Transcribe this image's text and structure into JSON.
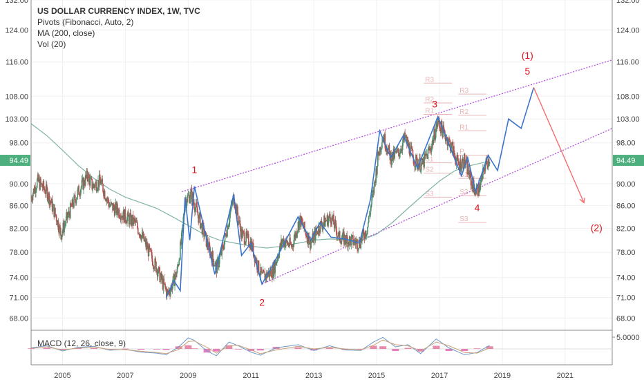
{
  "legend": {
    "title": "US DOLLAR CURRENCY INDEX, 1W, TVC",
    "line2": "Pivots (Fibonacci, Auto, 2)",
    "line3": "MA (200, close)",
    "line4": "Vol (20)"
  },
  "macd_label": "MACD (12, 26, close, 9)",
  "colors": {
    "candle_up": "#4e8d6b",
    "candle_down": "#b55050",
    "ma": "#7fb3a4",
    "wave": "#3b73c8",
    "channel": "#b24ce0",
    "label": "#e0121b",
    "pivot": "#e8b4b4",
    "price_tag": "#4caf7d"
  },
  "chart_data": {
    "type": "line",
    "title": "US DOLLAR CURRENCY INDEX, 1W, TVC",
    "y_scale": "log",
    "ylim": [
      66.3,
      132
    ],
    "xlim": [
      2004.0,
      2022.5
    ],
    "y_ticks": [
      "132.00",
      "124.00",
      "116.00",
      "108.00",
      "103.00",
      "98.00",
      "94.49",
      "90.00",
      "86.00",
      "82.00",
      "78.00",
      "74.00",
      "71.00",
      "68.00"
    ],
    "x_ticks": [
      "2005",
      "2007",
      "2009",
      "2011",
      "2013",
      "2015",
      "2017",
      "2019",
      "2021"
    ],
    "last_price": "94.49",
    "price_series": [
      [
        2004.0,
        87.5
      ],
      [
        2004.2,
        90.5
      ],
      [
        2004.5,
        88.5
      ],
      [
        2004.8,
        84.0
      ],
      [
        2004.95,
        81.0
      ],
      [
        2005.2,
        84.5
      ],
      [
        2005.5,
        88.5
      ],
      [
        2005.8,
        91.5
      ],
      [
        2005.95,
        89.5
      ],
      [
        2006.2,
        90.5
      ],
      [
        2006.5,
        86.0
      ],
      [
        2006.8,
        85.0
      ],
      [
        2007.0,
        84.0
      ],
      [
        2007.3,
        83.0
      ],
      [
        2007.5,
        81.0
      ],
      [
        2007.8,
        77.5
      ],
      [
        2008.0,
        75.5
      ],
      [
        2008.2,
        73.0
      ],
      [
        2008.35,
        71.5
      ],
      [
        2008.5,
        73.0
      ],
      [
        2008.65,
        75.0
      ],
      [
        2008.8,
        80.5
      ],
      [
        2008.9,
        87.0
      ],
      [
        2009.1,
        88.0
      ],
      [
        2009.3,
        84.5
      ],
      [
        2009.6,
        79.5
      ],
      [
        2009.9,
        75.5
      ],
      [
        2010.1,
        78.5
      ],
      [
        2010.45,
        87.5
      ],
      [
        2010.7,
        81.0
      ],
      [
        2011.0,
        79.5
      ],
      [
        2011.2,
        76.0
      ],
      [
        2011.35,
        74.0
      ],
      [
        2011.7,
        75.0
      ],
      [
        2012.0,
        80.0
      ],
      [
        2012.3,
        79.0
      ],
      [
        2012.55,
        83.5
      ],
      [
        2012.9,
        79.5
      ],
      [
        2013.2,
        82.5
      ],
      [
        2013.55,
        84.0
      ],
      [
        2013.8,
        80.5
      ],
      [
        2014.1,
        80.0
      ],
      [
        2014.45,
        79.5
      ],
      [
        2014.7,
        82.0
      ],
      [
        2014.9,
        88.5
      ],
      [
        2015.05,
        95.5
      ],
      [
        2015.2,
        99.5
      ],
      [
        2015.45,
        95.0
      ],
      [
        2015.7,
        96.0
      ],
      [
        2015.9,
        99.0
      ],
      [
        2016.2,
        94.5
      ],
      [
        2016.45,
        93.5
      ],
      [
        2016.75,
        97.5
      ],
      [
        2016.95,
        102.5
      ],
      [
        2017.1,
        100.5
      ],
      [
        2017.4,
        97.0
      ],
      [
        2017.6,
        93.5
      ],
      [
        2017.8,
        94.5
      ],
      [
        2018.0,
        90.5
      ],
      [
        2018.15,
        88.5
      ],
      [
        2018.3,
        89.5
      ],
      [
        2018.45,
        93.5
      ],
      [
        2018.6,
        95.0
      ]
    ],
    "ma_series": [
      [
        2004.0,
        102.0
      ],
      [
        2004.5,
        99.5
      ],
      [
        2005.0,
        96.5
      ],
      [
        2005.5,
        93.5
      ],
      [
        2006.0,
        91.0
      ],
      [
        2006.5,
        89.0
      ],
      [
        2007.0,
        87.5
      ],
      [
        2007.5,
        86.5
      ],
      [
        2008.0,
        85.5
      ],
      [
        2008.5,
        84.0
      ],
      [
        2009.0,
        82.5
      ],
      [
        2009.5,
        81.0
      ],
      [
        2010.0,
        80.0
      ],
      [
        2010.5,
        79.5
      ],
      [
        2011.0,
        79.0
      ],
      [
        2011.5,
        78.7
      ],
      [
        2012.0,
        79.0
      ],
      [
        2012.5,
        79.5
      ],
      [
        2013.0,
        80.0
      ],
      [
        2013.5,
        80.2
      ],
      [
        2014.0,
        80.1
      ],
      [
        2014.5,
        80.0
      ],
      [
        2015.0,
        81.0
      ],
      [
        2015.5,
        83.0
      ],
      [
        2016.0,
        85.5
      ],
      [
        2016.5,
        88.0
      ],
      [
        2017.0,
        90.5
      ],
      [
        2017.5,
        92.5
      ],
      [
        2018.0,
        93.5
      ],
      [
        2018.5,
        94.2
      ]
    ],
    "wave_path": [
      [
        2008.3,
        71.0
      ],
      [
        2008.55,
        73.5
      ],
      [
        2008.75,
        72.0
      ],
      [
        2008.9,
        87.5
      ],
      [
        2009.05,
        80.0
      ],
      [
        2009.2,
        89.5
      ],
      [
        2009.85,
        74.5
      ],
      [
        2010.45,
        88.0
      ],
      [
        2010.7,
        77.5
      ],
      [
        2011.0,
        79.5
      ],
      [
        2011.35,
        73.0
      ],
      [
        2011.7,
        76.0
      ],
      [
        2012.5,
        84.0
      ],
      [
        2012.9,
        80.0
      ],
      [
        2013.2,
        83.0
      ],
      [
        2013.55,
        80.5
      ],
      [
        2014.0,
        80.2
      ],
      [
        2014.45,
        79.5
      ],
      [
        2014.8,
        87.0
      ],
      [
        2015.1,
        100.5
      ],
      [
        2015.45,
        95.0
      ],
      [
        2015.85,
        99.5
      ],
      [
        2016.3,
        93.0
      ],
      [
        2016.95,
        103.5
      ],
      [
        2017.7,
        91.5
      ],
      [
        2017.9,
        95.0
      ],
      [
        2018.15,
        88.5
      ],
      [
        2018.55,
        95.5
      ],
      [
        2018.85,
        92.5
      ],
      [
        2019.2,
        103.0
      ],
      [
        2019.6,
        101.0
      ],
      [
        2020.0,
        110.0
      ]
    ],
    "projection_segment": [
      [
        2020.0,
        110.0
      ],
      [
        2021.6,
        86.5
      ]
    ],
    "channel_lines": [
      {
        "name": "upper",
        "points": [
          [
            2008.8,
            88.5
          ],
          [
            2022.5,
            116.5
          ]
        ]
      },
      {
        "name": "lower",
        "points": [
          [
            2011.35,
            73.0
          ],
          [
            2022.5,
            101.0
          ]
        ]
      }
    ],
    "wave_labels": [
      {
        "text": "1",
        "x": 2009.2,
        "y": 92.0
      },
      {
        "text": "2",
        "x": 2011.35,
        "y": 69.8
      },
      {
        "text": "3",
        "x": 2016.85,
        "y": 105.5
      },
      {
        "text": "4",
        "x": 2018.2,
        "y": 85.0
      },
      {
        "text": "(1)",
        "x": 2019.8,
        "y": 116.8
      },
      {
        "text": "5",
        "x": 2019.8,
        "y": 113.0
      },
      {
        "text": "(2)",
        "x": 2022.0,
        "y": 81.5
      }
    ],
    "pivot_levels": [
      {
        "label": "R3",
        "x1": 2016.5,
        "x2": 2017.4,
        "y": 111.0
      },
      {
        "label": "R2",
        "x1": 2016.5,
        "x2": 2017.4,
        "y": 106.5
      },
      {
        "label": "R1",
        "x1": 2016.5,
        "x2": 2017.4,
        "y": 104.0
      },
      {
        "label": "R3",
        "x1": 2017.6,
        "x2": 2018.5,
        "y": 108.5
      },
      {
        "label": "R2",
        "x1": 2017.6,
        "x2": 2018.5,
        "y": 103.8
      },
      {
        "label": "R1",
        "x1": 2017.6,
        "x2": 2018.5,
        "y": 100.5
      },
      {
        "label": "S1",
        "x1": 2016.5,
        "x2": 2017.4,
        "y": 94.0
      },
      {
        "label": "S2",
        "x1": 2016.5,
        "x2": 2017.4,
        "y": 92.0
      },
      {
        "label": "S3",
        "x1": 2016.5,
        "x2": 2017.4,
        "y": 87.5
      },
      {
        "label": "P",
        "x1": 2017.6,
        "x2": 2018.5,
        "y": 95.5
      },
      {
        "label": "S1",
        "x1": 2017.6,
        "x2": 2018.5,
        "y": 91.0
      },
      {
        "label": "S2",
        "x1": 2017.6,
        "x2": 2018.5,
        "y": 87.8
      },
      {
        "label": "S3",
        "x1": 2017.6,
        "x2": 2018.5,
        "y": 83.0
      }
    ],
    "macd": {
      "label": "MACD (12, 26, close, 9)",
      "y_tick": "5.0000",
      "macd_line": [
        [
          2004.0,
          0.4
        ],
        [
          2004.5,
          1.2
        ],
        [
          2005.0,
          -0.8
        ],
        [
          2005.5,
          0.6
        ],
        [
          2006.0,
          1.0
        ],
        [
          2006.5,
          -0.5
        ],
        [
          2007.0,
          -0.2
        ],
        [
          2007.5,
          -1.2
        ],
        [
          2008.0,
          -1.6
        ],
        [
          2008.3,
          -2.2
        ],
        [
          2008.7,
          0.8
        ],
        [
          2009.0,
          4.2
        ],
        [
          2009.2,
          3.2
        ],
        [
          2009.6,
          -0.8
        ],
        [
          2009.9,
          -2.6
        ],
        [
          2010.3,
          2.6
        ],
        [
          2010.6,
          1.2
        ],
        [
          2011.0,
          -1.2
        ],
        [
          2011.3,
          -2.4
        ],
        [
          2011.8,
          0.4
        ],
        [
          2012.5,
          1.6
        ],
        [
          2013.0,
          -0.6
        ],
        [
          2013.5,
          1.2
        ],
        [
          2014.0,
          -0.4
        ],
        [
          2014.5,
          -0.6
        ],
        [
          2014.9,
          2.6
        ],
        [
          2015.2,
          4.4
        ],
        [
          2015.6,
          0.8
        ],
        [
          2016.0,
          1.6
        ],
        [
          2016.4,
          -1.8
        ],
        [
          2016.9,
          3.8
        ],
        [
          2017.3,
          0.4
        ],
        [
          2017.8,
          -2.2
        ],
        [
          2018.2,
          -1.4
        ],
        [
          2018.6,
          1.4
        ]
      ],
      "signal_line": [
        [
          2004.0,
          0.2
        ],
        [
          2004.5,
          0.8
        ],
        [
          2005.0,
          -0.4
        ],
        [
          2005.5,
          0.3
        ],
        [
          2006.0,
          0.7
        ],
        [
          2006.5,
          -0.2
        ],
        [
          2007.0,
          -0.3
        ],
        [
          2007.5,
          -0.9
        ],
        [
          2008.0,
          -1.4
        ],
        [
          2008.3,
          -1.8
        ],
        [
          2008.7,
          -0.2
        ],
        [
          2009.0,
          2.8
        ],
        [
          2009.2,
          3.0
        ],
        [
          2009.6,
          0.6
        ],
        [
          2009.9,
          -1.6
        ],
        [
          2010.3,
          1.2
        ],
        [
          2010.6,
          1.4
        ],
        [
          2011.0,
          -0.4
        ],
        [
          2011.3,
          -1.8
        ],
        [
          2011.8,
          -0.4
        ],
        [
          2012.5,
          1.0
        ],
        [
          2013.0,
          0.0
        ],
        [
          2013.5,
          0.6
        ],
        [
          2014.0,
          0.0
        ],
        [
          2014.5,
          -0.4
        ],
        [
          2014.9,
          1.4
        ],
        [
          2015.2,
          3.4
        ],
        [
          2015.6,
          1.6
        ],
        [
          2016.0,
          1.2
        ],
        [
          2016.4,
          -0.8
        ],
        [
          2016.9,
          2.6
        ],
        [
          2017.3,
          1.2
        ],
        [
          2017.8,
          -1.4
        ],
        [
          2018.2,
          -1.6
        ],
        [
          2018.6,
          0.4
        ]
      ]
    }
  }
}
